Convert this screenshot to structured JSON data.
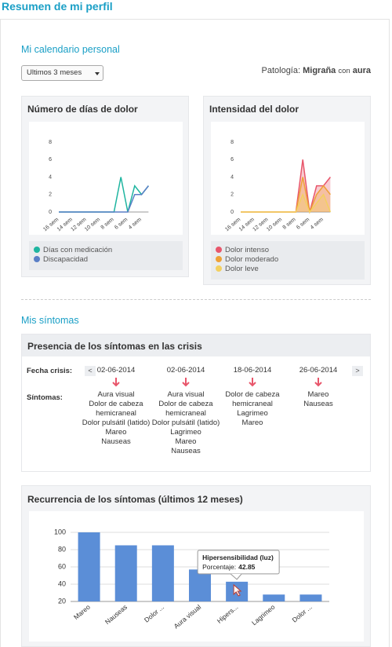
{
  "header": {
    "title": "Resumen de mi perfil"
  },
  "calendar": {
    "title": "Mi calendario personal",
    "period": "Ultimos 3 meses",
    "pathology_label": "Patología:",
    "pathology_name": "Migraña",
    "pathology_connector": "con",
    "pathology_type": "aura"
  },
  "symptoms": {
    "title": "Mis síntomas",
    "presence": {
      "title": "Presencia de los síntomas en las crisis",
      "date_label": "Fecha crisis:",
      "symptoms_label": "Síntomas:",
      "prev": "<",
      "next": ">",
      "crises": [
        {
          "date": "02-06-2014",
          "symptoms": [
            "Aura visual",
            "Dolor de cabeza hemicraneal",
            "Dolor pulsátil (latido)",
            "Mareo",
            "Nauseas"
          ]
        },
        {
          "date": "02-06-2014",
          "symptoms": [
            "Aura visual",
            "Dolor de cabeza hemicraneal",
            "Dolor pulsátil (latido)",
            "Lagrimeo",
            "Mareo",
            "Nauseas"
          ]
        },
        {
          "date": "18-06-2014",
          "symptoms": [
            "Dolor de cabeza hemicraneal",
            "Lagrimeo",
            "Mareo"
          ]
        },
        {
          "date": "26-06-2014",
          "symptoms": [
            "Mareo",
            "Nauseas"
          ]
        }
      ]
    }
  },
  "chart_data": [
    {
      "type": "line",
      "title": "Número de días de dolor",
      "categories": [
        "16 sem",
        null,
        "14 sem",
        null,
        "12 sem",
        null,
        "10 sem",
        null,
        "8 sem",
        null,
        "6 sem",
        null,
        "4 sem",
        null
      ],
      "series": [
        {
          "name": "Días con medicación",
          "color": "#1fb5a0",
          "values": [
            0,
            0,
            0,
            0,
            0,
            0,
            0,
            0,
            0,
            4,
            0,
            3,
            2,
            3
          ]
        },
        {
          "name": "Discapacidad",
          "color": "#5a7fc6",
          "values": [
            0,
            0,
            0,
            0,
            0,
            0,
            0,
            0,
            0,
            0,
            0,
            2,
            2,
            3
          ]
        }
      ],
      "ylim": [
        0,
        8
      ],
      "yticks": [
        0,
        2,
        4,
        6,
        8
      ],
      "grid": false
    },
    {
      "type": "area",
      "title": "Intensidad del dolor",
      "categories": [
        "16 sem",
        null,
        "14 sem",
        null,
        "12 sem",
        null,
        "10 sem",
        null,
        "8 sem",
        null,
        "6 sem",
        null,
        "4 sem",
        null
      ],
      "series": [
        {
          "name": "Dolor intenso",
          "color": "#e8566b",
          "values": [
            0,
            0,
            0,
            0,
            0,
            0,
            0,
            0,
            0,
            6,
            0,
            3,
            3,
            4
          ]
        },
        {
          "name": "Dolor moderado",
          "color": "#eea137",
          "values": [
            0,
            0,
            0,
            0,
            0,
            0,
            0,
            0,
            0,
            4,
            0,
            2,
            3,
            2
          ]
        },
        {
          "name": "Dolor leve",
          "color": "#f3d061",
          "values": [
            0,
            0,
            0,
            0,
            0,
            0,
            0,
            0,
            0,
            2,
            0,
            1,
            2,
            0
          ]
        }
      ],
      "ylim": [
        0,
        8
      ],
      "yticks": [
        0,
        2,
        4,
        6,
        8
      ],
      "grid": false
    },
    {
      "type": "bar",
      "title": "Recurrencia de los síntomas (últimos 12 meses)",
      "categories": [
        "Mareo",
        "Nauseas",
        "Dolor ...",
        "Aura visual",
        "Hipers...",
        "Lagrimeo",
        "Dolor ..."
      ],
      "values": [
        100,
        85,
        85,
        57,
        42.85,
        28,
        28
      ],
      "color": "#5b8ed7",
      "ylim": [
        20,
        100
      ],
      "yticks": [
        20,
        40,
        60,
        80,
        100
      ],
      "grid": true,
      "tooltip": {
        "title": "Hipersensibilidad (luz)",
        "label": "Porcentaje:",
        "index": 4
      }
    }
  ]
}
